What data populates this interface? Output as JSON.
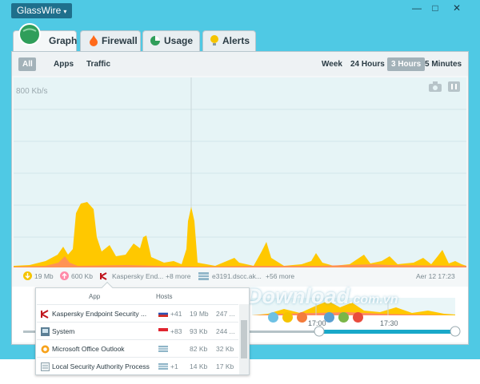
{
  "app": {
    "menu_label": "GlassWire",
    "menu_caret": "▾"
  },
  "window_controls": {
    "minimize": "—",
    "maximize": "□",
    "close": "✕"
  },
  "tabs": [
    {
      "label": "Graph",
      "icon": "globe-icon",
      "active": true
    },
    {
      "label": "Firewall",
      "icon": "flame-icon"
    },
    {
      "label": "Usage",
      "icon": "pie-icon"
    },
    {
      "label": "Alerts",
      "icon": "bulb-icon"
    }
  ],
  "filters": [
    "All",
    "Apps",
    "Traffic"
  ],
  "active_filter": "All",
  "ranges": [
    "Week",
    "24 Hours",
    "3 Hours",
    "5 Minutes"
  ],
  "active_range": "3 Hours",
  "graph": {
    "ylabel": "800 Kb/s",
    "camera_icon": "camera-icon",
    "pause_icon": "pause-icon"
  },
  "status": {
    "download": "19 Mb",
    "upload": "600 Kb",
    "app": "Kaspersky End...",
    "app_more": "+8 more",
    "host": "e3191.dscc.ak...",
    "host_more": "+56 more",
    "time": "Aer 12 17:23"
  },
  "timeline": {
    "labels": [
      "17:00",
      "17:30"
    ]
  },
  "popup": {
    "headers": {
      "app": "App",
      "hosts": "Hosts"
    },
    "rows": [
      {
        "name": "Kaspersky Endpoint Security ...",
        "hosts": "+41",
        "down": "19 Mb",
        "up": "247 ...",
        "icon": "kaspersky-icon",
        "flag": "russia"
      },
      {
        "name": "System",
        "hosts": "+83",
        "down": "93 Kb",
        "up": "244 ...",
        "icon": "system-icon",
        "flag": "singapore"
      },
      {
        "name": "Microsoft Office Outlook",
        "hosts": "",
        "down": "82 Kb",
        "up": "32 Kb",
        "icon": "outlook-icon",
        "flag": "generic"
      },
      {
        "name": "Local Security Authority Process",
        "hosts": "+1",
        "down": "14 Kb",
        "up": "17 Kb",
        "icon": "lsa-icon",
        "flag": "generic"
      }
    ]
  },
  "watermark": {
    "main": "Download",
    "suffix": ".com.vn"
  },
  "colors": {
    "background": "#4fc9e4",
    "download": "#ffcc00",
    "upload": "#ff7e5f",
    "accent": "#1f6f8c"
  }
}
